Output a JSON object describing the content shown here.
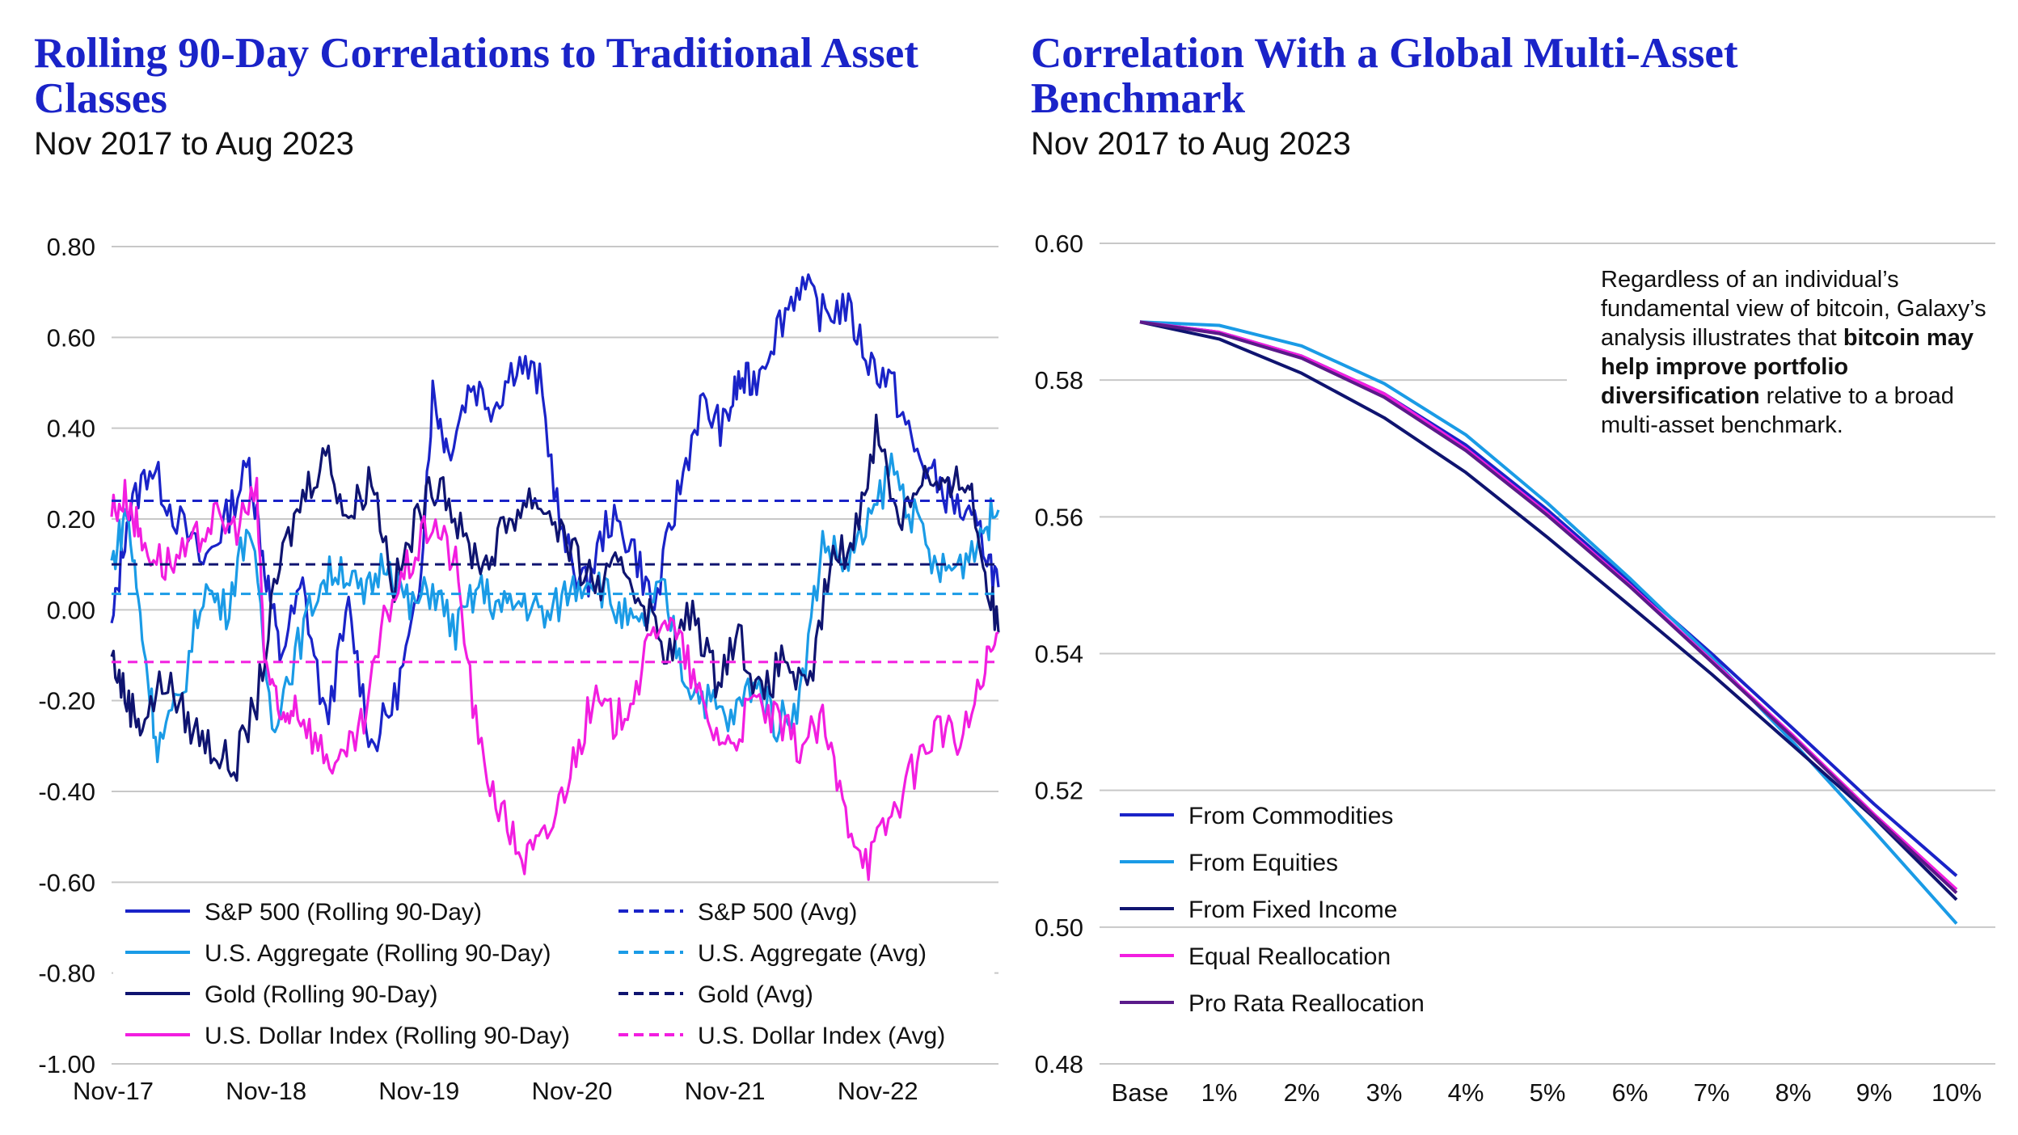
{
  "left": {
    "title": "Rolling 90-Day Correlations to Traditional Asset Classes",
    "subtitle": "Nov 2017 to Aug 2023"
  },
  "right": {
    "title": "Correlation With a Global Multi-Asset Benchmark",
    "subtitle": "Nov 2017 to Aug 2023",
    "note": {
      "part1": "Regardless of an individual’s fundamental view of bitcoin, Galaxy’s analysis illustrates that ",
      "bold": "bitcoin may help improve portfolio diversification",
      "part2": " relative to a broad multi-asset benchmark."
    }
  },
  "colors": {
    "sp500": "#1a23c8",
    "agg": "#1a9be6",
    "gold": "#0f1470",
    "dxy": "#f21ee0",
    "prorata": "#5a1a8a",
    "grid": "#c8c8c8"
  },
  "chart_data": [
    {
      "type": "line",
      "title": "Rolling 90-Day Correlations to Traditional Asset Classes",
      "ylim": [
        -1.0,
        0.8
      ],
      "yticks": [
        "0.80",
        "0.60",
        "0.40",
        "0.20",
        "0.00",
        "-0.20",
        "-0.40",
        "-0.60",
        "-0.80",
        "-1.00"
      ],
      "ytick_values": [
        0.8,
        0.6,
        0.4,
        0.2,
        0.0,
        -0.2,
        -0.4,
        -0.6,
        -0.8,
        -1.0
      ],
      "xticks": [
        "Nov-17",
        "Nov-18",
        "Nov-19",
        "Nov-20",
        "Nov-21",
        "Nov-22"
      ],
      "xrange_years": [
        0,
        5.8
      ],
      "series": [
        {
          "name": "S&P 500 (Rolling 90-Day)",
          "key": "sp500",
          "style": "solid",
          "x": [
            0,
            0.1,
            0.25,
            0.4,
            0.6,
            0.75,
            0.9,
            1.0,
            1.1,
            1.25,
            1.4,
            1.55,
            1.7,
            1.85,
            2.0,
            2.1,
            2.2,
            2.35,
            2.5,
            2.65,
            2.8,
            2.95,
            3.1,
            3.25,
            3.4,
            3.55,
            3.7,
            3.85,
            4.0,
            4.1,
            4.2,
            4.35,
            4.5,
            4.65,
            4.8,
            4.95,
            5.1,
            5.25,
            5.4,
            5.55,
            5.7,
            5.8
          ],
          "y": [
            -0.05,
            0.2,
            0.32,
            0.22,
            0.1,
            0.2,
            0.32,
            0.1,
            -0.1,
            0.05,
            -0.25,
            0.0,
            -0.3,
            -0.2,
            0.0,
            0.48,
            0.35,
            0.5,
            0.45,
            0.55,
            0.5,
            0.15,
            0.05,
            0.2,
            0.15,
            0.0,
            0.25,
            0.45,
            0.4,
            0.5,
            0.5,
            0.62,
            0.72,
            0.65,
            0.67,
            0.55,
            0.5,
            0.35,
            0.28,
            0.22,
            0.15,
            0.05
          ]
        },
        {
          "name": "U.S. Aggregate (Rolling 90-Day)",
          "key": "agg",
          "style": "solid",
          "x": [
            0,
            0.1,
            0.2,
            0.3,
            0.45,
            0.6,
            0.75,
            0.9,
            1.05,
            1.2,
            1.35,
            1.5,
            1.65,
            1.8,
            1.95,
            2.1,
            2.25,
            2.4,
            2.55,
            2.7,
            2.85,
            3.0,
            3.15,
            3.3,
            3.45,
            3.6,
            3.75,
            3.9,
            4.05,
            4.2,
            4.35,
            4.5,
            4.65,
            4.8,
            4.95,
            5.1,
            5.25,
            5.4,
            5.55,
            5.7,
            5.8
          ],
          "y": [
            0.1,
            0.22,
            -0.05,
            -0.3,
            -0.2,
            0.05,
            0.0,
            0.2,
            -0.25,
            -0.1,
            0.05,
            0.1,
            0.02,
            0.12,
            0.0,
            0.05,
            -0.05,
            0.05,
            0.0,
            0.02,
            -0.02,
            0.05,
            0.08,
            0.0,
            -0.05,
            0.05,
            -0.15,
            -0.2,
            -0.25,
            -0.15,
            -0.25,
            -0.2,
            0.15,
            0.1,
            0.18,
            0.32,
            0.2,
            0.08,
            0.1,
            0.18,
            0.22
          ]
        },
        {
          "name": "Gold (Rolling 90-Day)",
          "key": "gold",
          "style": "solid",
          "x": [
            0,
            0.1,
            0.2,
            0.35,
            0.5,
            0.65,
            0.8,
            0.95,
            1.1,
            1.25,
            1.4,
            1.55,
            1.7,
            1.85,
            2.0,
            2.15,
            2.3,
            2.45,
            2.6,
            2.75,
            2.9,
            3.05,
            3.2,
            3.35,
            3.5,
            3.65,
            3.8,
            3.95,
            4.1,
            4.25,
            4.4,
            4.55,
            4.7,
            4.85,
            5.0,
            5.15,
            5.3,
            5.45,
            5.6,
            5.7,
            5.8
          ],
          "y": [
            -0.1,
            -0.2,
            -0.25,
            -0.15,
            -0.25,
            -0.3,
            -0.35,
            -0.2,
            0.1,
            0.25,
            0.35,
            0.2,
            0.3,
            0.05,
            0.2,
            0.3,
            0.15,
            0.1,
            0.2,
            0.25,
            0.2,
            0.1,
            0.05,
            0.1,
            0.0,
            -0.1,
            0.0,
            -0.15,
            -0.05,
            -0.2,
            -0.1,
            -0.2,
            0.1,
            0.15,
            0.4,
            0.2,
            0.3,
            0.25,
            0.3,
            0.1,
            -0.05
          ]
        },
        {
          "name": "U.S. Dollar Index (Rolling 90-Day)",
          "key": "dxy",
          "style": "solid",
          "x": [
            0,
            0.1,
            0.2,
            0.35,
            0.5,
            0.65,
            0.8,
            0.95,
            1.0,
            1.1,
            1.2,
            1.35,
            1.5,
            1.65,
            1.8,
            1.95,
            2.1,
            2.25,
            2.4,
            2.55,
            2.7,
            2.85,
            3.0,
            3.15,
            3.3,
            3.45,
            3.6,
            3.75,
            3.9,
            4.05,
            4.2,
            4.35,
            4.5,
            4.65,
            4.8,
            4.95,
            5.1,
            5.25,
            5.4,
            5.55,
            5.7,
            5.8
          ],
          "y": [
            0.22,
            0.25,
            0.15,
            0.1,
            0.12,
            0.2,
            0.18,
            0.25,
            -0.1,
            -0.25,
            -0.2,
            -0.3,
            -0.35,
            -0.25,
            0.0,
            0.1,
            0.2,
            0.1,
            -0.3,
            -0.45,
            -0.55,
            -0.5,
            -0.35,
            -0.2,
            -0.25,
            -0.15,
            0.0,
            -0.1,
            -0.25,
            -0.3,
            -0.2,
            -0.25,
            -0.3,
            -0.25,
            -0.45,
            -0.55,
            -0.45,
            -0.35,
            -0.25,
            -0.3,
            -0.15,
            -0.05
          ]
        },
        {
          "name": "S&P 500 (Avg)",
          "key": "sp500",
          "style": "dashed",
          "value": 0.24
        },
        {
          "name": "U.S. Aggregate (Avg)",
          "key": "agg",
          "style": "dashed",
          "value": 0.035
        },
        {
          "name": "Gold (Avg)",
          "key": "gold",
          "style": "dashed",
          "value": 0.1
        },
        {
          "name": "U.S. Dollar Index (Avg)",
          "key": "dxy",
          "style": "dashed",
          "value": -0.115
        }
      ],
      "legend": [
        "S&P 500 (Rolling 90-Day)",
        "S&P 500 (Avg)",
        "U.S. Aggregate (Rolling 90-Day)",
        "U.S. Aggregate (Avg)",
        "Gold (Rolling 90-Day)",
        "Gold (Avg)",
        "U.S. Dollar Index (Rolling 90-Day)",
        "U.S. Dollar Index (Avg)"
      ]
    },
    {
      "type": "line",
      "title": "Correlation With a Global Multi-Asset Benchmark",
      "ylim": [
        0.48,
        0.6
      ],
      "yticks": [
        "0.60",
        "0.58",
        "0.56",
        "0.54",
        "0.52",
        "0.50",
        "0.48"
      ],
      "ytick_values": [
        0.6,
        0.58,
        0.56,
        0.54,
        0.52,
        0.5,
        0.48
      ],
      "categories": [
        "Base",
        "1%",
        "2%",
        "3%",
        "4%",
        "5%",
        "6%",
        "7%",
        "8%",
        "9%",
        "10%"
      ],
      "series": [
        {
          "name": "From Commodities",
          "key": "sp500",
          "values": [
            0.5885,
            0.587,
            0.5835,
            0.578,
            0.5705,
            0.561,
            0.5505,
            0.54,
            0.529,
            0.518,
            0.5075
          ]
        },
        {
          "name": "From Equities",
          "key": "agg",
          "values": [
            0.5885,
            0.588,
            0.585,
            0.5795,
            0.572,
            0.562,
            0.551,
            0.5395,
            0.527,
            0.514,
            0.5005
          ]
        },
        {
          "name": "From Fixed Income",
          "key": "gold",
          "values": [
            0.5885,
            0.586,
            0.581,
            0.5745,
            0.5665,
            0.557,
            0.547,
            0.537,
            0.5265,
            0.516,
            0.504
          ]
        },
        {
          "name": "Equal Reallocation",
          "key": "dxy",
          "values": [
            0.5885,
            0.587,
            0.5835,
            0.578,
            0.57,
            0.5605,
            0.55,
            0.539,
            0.528,
            0.5165,
            0.5055
          ]
        },
        {
          "name": "Pro Rata Reallocation",
          "key": "prorata",
          "values": [
            0.5885,
            0.5868,
            0.5832,
            0.5775,
            0.5697,
            0.5602,
            0.5498,
            0.5388,
            0.5277,
            0.5162,
            0.505
          ]
        }
      ]
    }
  ]
}
